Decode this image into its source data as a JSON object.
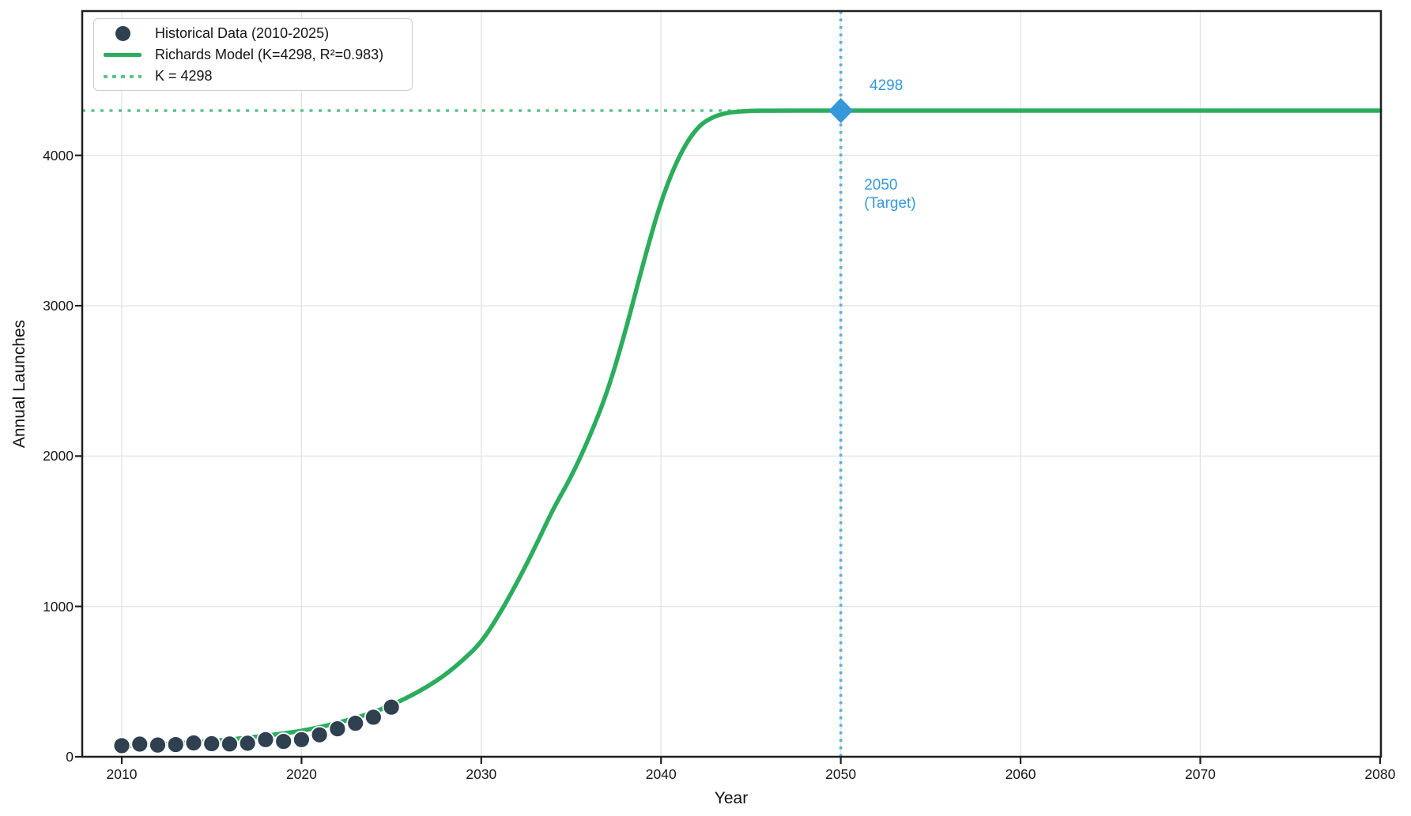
{
  "chart_data": {
    "type": "scatter+line",
    "title": "",
    "xlabel": "Year",
    "ylabel": "Annual Launches",
    "xlim": [
      2007.8,
      2080.05
    ],
    "ylim": [
      0,
      4960
    ],
    "xticks": [
      2010,
      2020,
      2030,
      2040,
      2050,
      2060,
      2070,
      2080
    ],
    "yticks": [
      0,
      1000,
      2000,
      3000,
      4000
    ],
    "grid": true,
    "legend_position": "upper-left",
    "series": [
      {
        "name": "Historical Data (2010-2025)",
        "kind": "scatter",
        "color": "#2f4050",
        "edge_color": "#ffffff",
        "x": [
          2010,
          2011,
          2012,
          2013,
          2014,
          2015,
          2016,
          2017,
          2018,
          2019,
          2020,
          2021,
          2022,
          2023,
          2024,
          2025
        ],
        "y": [
          74,
          84,
          78,
          81,
          92,
          87,
          85,
          90,
          114,
          102,
          114,
          146,
          186,
          223,
          263,
          330
        ]
      },
      {
        "name": "Richards Model (K=4298, R²=0.983)",
        "kind": "line",
        "color": "#2bad5d",
        "points": [
          [
            2010,
            70
          ],
          [
            2011,
            76
          ],
          [
            2012,
            82
          ],
          [
            2013,
            89
          ],
          [
            2014,
            96
          ],
          [
            2015,
            105
          ],
          [
            2016,
            115
          ],
          [
            2017,
            127
          ],
          [
            2018,
            140
          ],
          [
            2019,
            155
          ],
          [
            2020,
            172
          ],
          [
            2021,
            196
          ],
          [
            2022,
            225
          ],
          [
            2023,
            258
          ],
          [
            2024,
            295
          ],
          [
            2025,
            344
          ],
          [
            2026,
            400
          ],
          [
            2027,
            466
          ],
          [
            2028,
            545
          ],
          [
            2029,
            644
          ],
          [
            2030,
            760
          ],
          [
            2031,
            945
          ],
          [
            2032,
            1160
          ],
          [
            2033,
            1395
          ],
          [
            2034,
            1650
          ],
          [
            2035,
            1860
          ],
          [
            2036,
            2120
          ],
          [
            2037,
            2420
          ],
          [
            2038,
            2820
          ],
          [
            2039,
            3280
          ],
          [
            2040,
            3700
          ],
          [
            2041,
            4000
          ],
          [
            2042,
            4190
          ],
          [
            2043,
            4265
          ],
          [
            2044,
            4290
          ],
          [
            2045,
            4296
          ],
          [
            2046,
            4298
          ],
          [
            2050,
            4298
          ],
          [
            2060,
            4298
          ],
          [
            2080,
            4298
          ]
        ]
      },
      {
        "name": "K = 4298",
        "kind": "hline",
        "value": 4298,
        "color": "#5fc389",
        "dash": "dotted"
      }
    ],
    "vline": {
      "x": 2050,
      "color": "#5dade2",
      "dash": "dotted"
    },
    "marker": {
      "shape": "diamond",
      "x": 2050,
      "y": 4298,
      "color": "#3498db"
    },
    "annotations": [
      {
        "id": "k-value-label",
        "lines": [
          "4298"
        ],
        "x": 2051.6,
        "y": 4460,
        "color": "#3498db"
      },
      {
        "id": "target-year-label",
        "lines": [
          "2050",
          "(Target)"
        ],
        "x": 2051.3,
        "y": 3800,
        "color": "#3498db"
      }
    ],
    "style": {
      "grid_color": "#e4e4e4",
      "spine_color": "#1f1f1f",
      "tick_color": "#1f1f1f"
    }
  }
}
